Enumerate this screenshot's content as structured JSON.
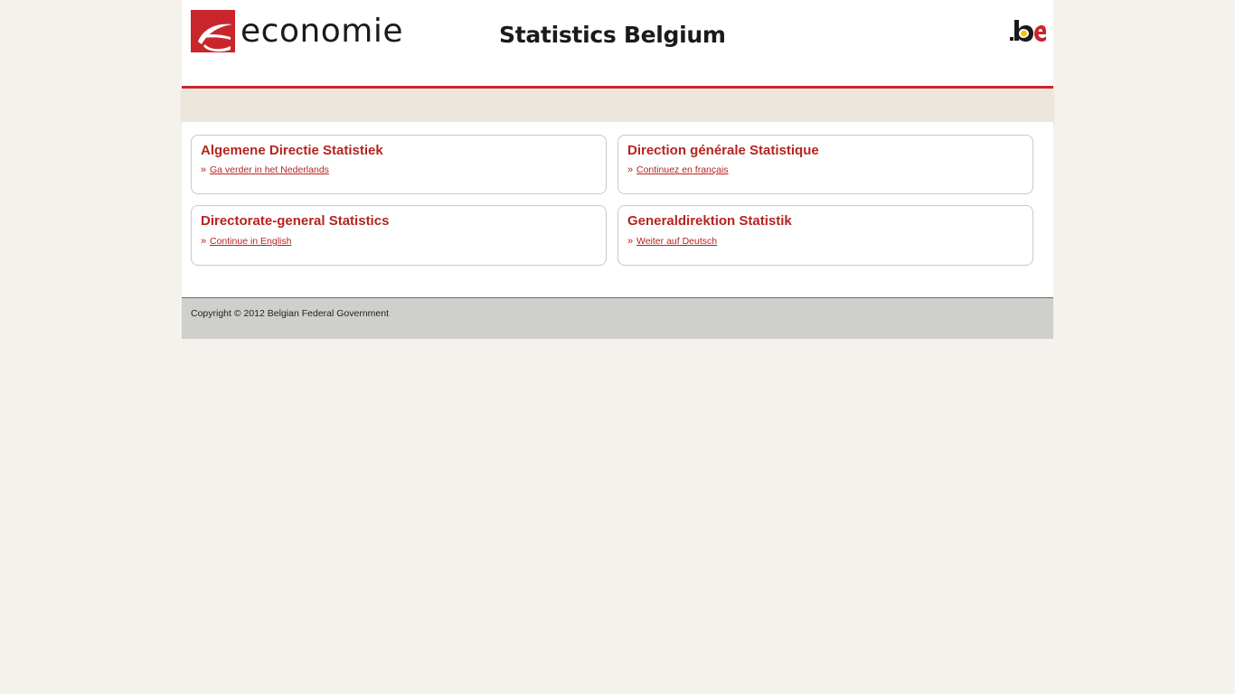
{
  "header": {
    "logo_left_text": "economie",
    "logo_center_text": "Statistics Belgium",
    "logo_right_text": ".be"
  },
  "cards": [
    {
      "title": "Algemene Directie Statistiek",
      "link": "Ga verder in het Nederlands"
    },
    {
      "title": "Direction générale Statistique",
      "link": "Continuez en français"
    },
    {
      "title": "Directorate-general Statistics",
      "link": "Continue in English"
    },
    {
      "title": "Generaldirektion Statistik",
      "link": "Weiter auf Deutsch"
    }
  ],
  "footer": {
    "copyright": "Copyright © 2012 Belgian Federal Government"
  },
  "colors": {
    "accent_red": "#c8262b",
    "link_red": "#b5241f",
    "band": "#ede6dc",
    "footer": "#cfd0cb",
    "page_bg": "#f5f2ed"
  }
}
